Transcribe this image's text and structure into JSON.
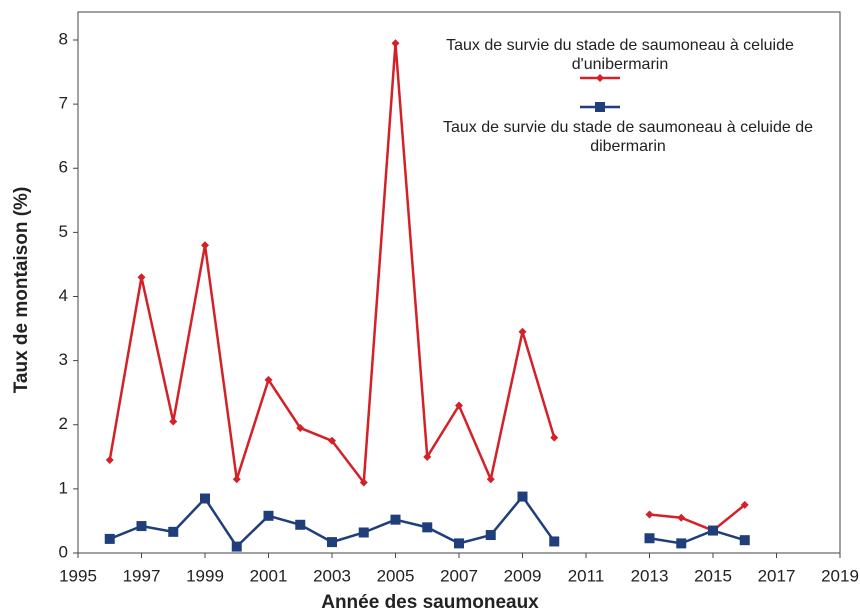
{
  "chart_data": {
    "type": "line",
    "x_label": "Année des saumoneaux",
    "y_label": "Taux de montaison (%)",
    "x": [
      1996,
      1997,
      1998,
      1999,
      2000,
      2001,
      2002,
      2003,
      2004,
      2005,
      2006,
      2007,
      2008,
      2009,
      2010,
      2011,
      2012,
      2013,
      2014,
      2015,
      2016
    ],
    "series": [
      {
        "name": "Taux de survie du stade de saumoneau à celuide d'unibermarin",
        "color": "#d42027",
        "marker": "diamond",
        "values": [
          1.45,
          4.3,
          2.05,
          4.8,
          1.15,
          2.7,
          1.95,
          1.75,
          1.1,
          7.95,
          1.5,
          2.3,
          1.15,
          3.45,
          1.8,
          null,
          null,
          0.6,
          0.55,
          0.35,
          0.75
        ]
      },
      {
        "name": "Taux de survie du stade de saumoneau à celuide de dibermarin",
        "color": "#1f3e7a",
        "marker": "square",
        "values": [
          0.22,
          0.42,
          0.33,
          0.85,
          0.1,
          0.58,
          0.44,
          0.17,
          0.32,
          0.52,
          0.4,
          0.15,
          0.28,
          0.88,
          0.18,
          null,
          null,
          0.23,
          0.15,
          0.35,
          0.2
        ]
      }
    ],
    "xlim": [
      1995,
      2019
    ],
    "xticks": [
      1995,
      1997,
      1999,
      2001,
      2003,
      2005,
      2007,
      2009,
      2011,
      2013,
      2015,
      2017,
      2019
    ],
    "ylim": [
      0,
      8
    ],
    "yticks": [
      0,
      1,
      2,
      3,
      4,
      5,
      6,
      7,
      8
    ],
    "grid": false
  }
}
